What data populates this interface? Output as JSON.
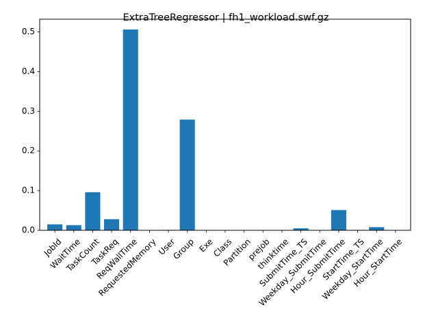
{
  "colors": {
    "bar": "#1f77b4",
    "axis": "#000000",
    "background": "#ffffff"
  },
  "chart_data": {
    "type": "bar",
    "title": "ExtraTreeRegressor | fh1_workload.swf.gz",
    "xlabel": "",
    "ylabel": "",
    "ylim": [
      0,
      0.532
    ],
    "yticks": [
      "0.0",
      "0.1",
      "0.2",
      "0.3",
      "0.4",
      "0.5"
    ],
    "grid": false,
    "categories": [
      "JobId",
      "WaitTime",
      "TaskCount",
      "TaskReq",
      "ReqWallTime",
      "RequestedMemory",
      "User",
      "Group",
      "Exe",
      "Class",
      "Partition",
      "prejob",
      "thinktime",
      "SubmitTime_TS",
      "Weekday_SubmitTime",
      "Hour_SubmitTime",
      "StartTime_TS",
      "Weekday_StartTime",
      "Hour_StartTime"
    ],
    "values": [
      0.015,
      0.013,
      0.096,
      0.028,
      0.506,
      0.0,
      0.001,
      0.279,
      0.0,
      0.0,
      0.0,
      0.0,
      0.0,
      0.005,
      0.0,
      0.051,
      0.001,
      0.008,
      0.0
    ]
  }
}
